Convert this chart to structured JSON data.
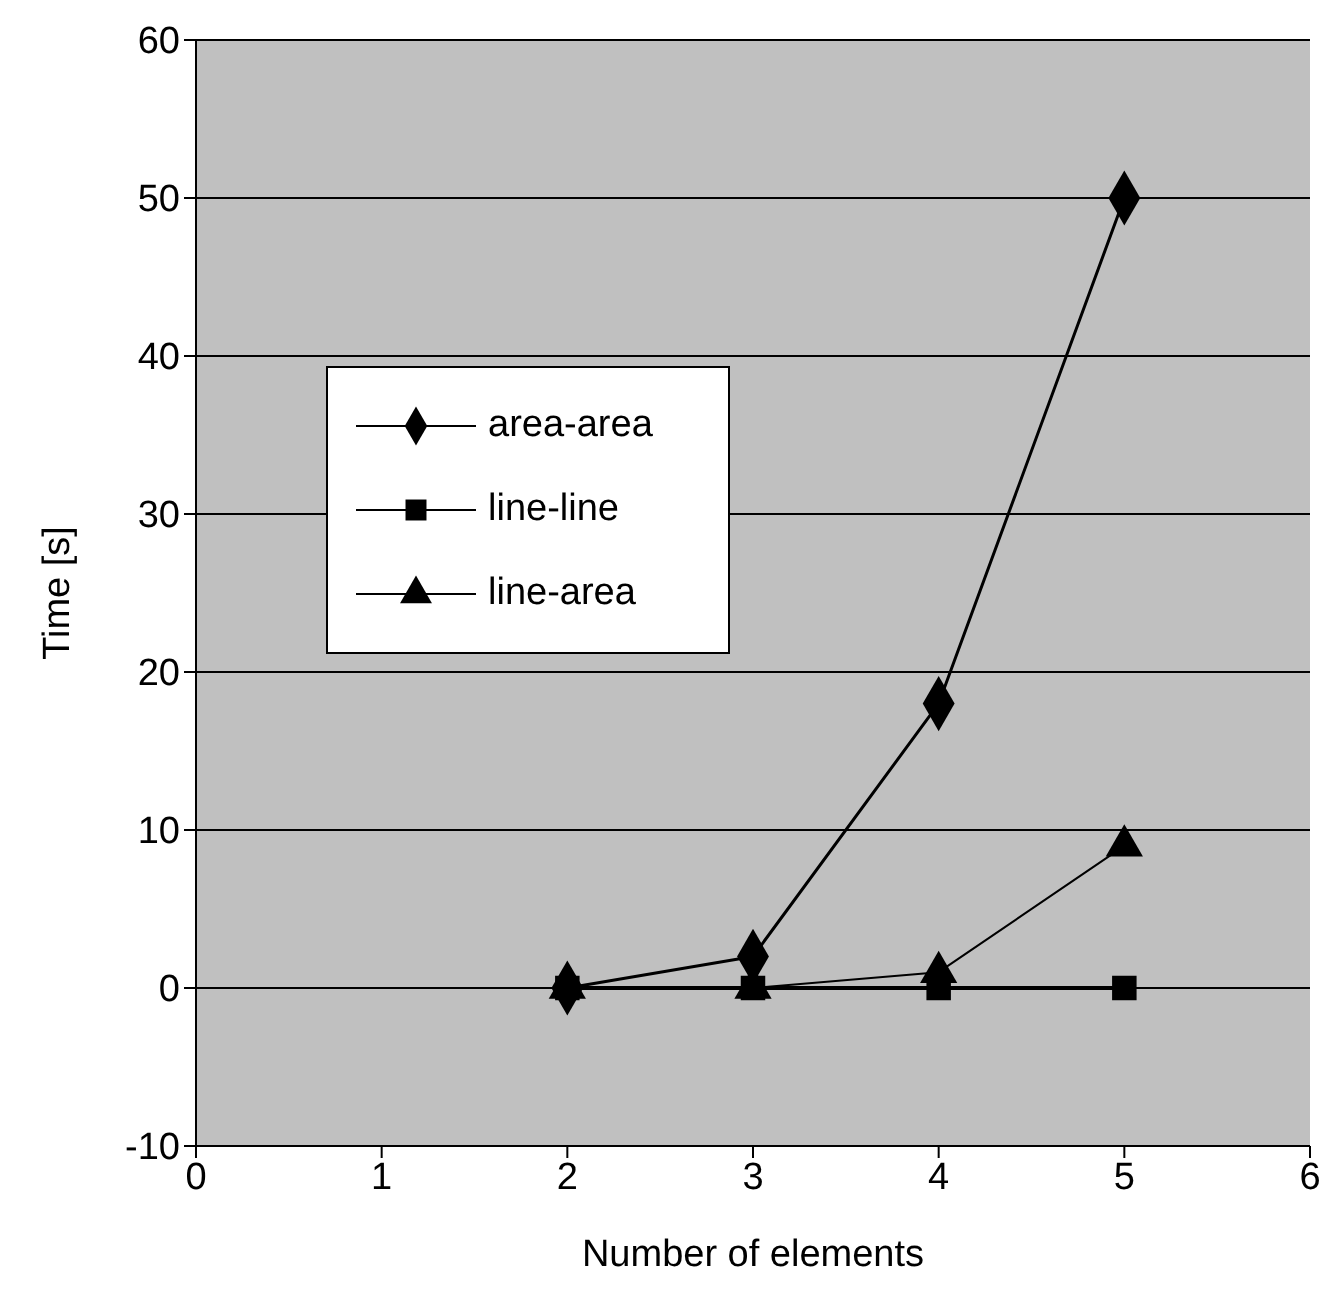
{
  "chart_data": {
    "type": "line",
    "xlabel": "Number of elements",
    "ylabel": "Time [s]",
    "x": [
      2,
      3,
      4,
      5
    ],
    "series": [
      {
        "name": "area-area",
        "color": "#000000",
        "marker": "diamond",
        "values": [
          0,
          2,
          18,
          50
        ]
      },
      {
        "name": "line-line",
        "color": "#000000",
        "marker": "square",
        "values": [
          0,
          0,
          0,
          0
        ]
      },
      {
        "name": "line-area",
        "color": "#000000",
        "marker": "triangle",
        "values": [
          0,
          0,
          1,
          9
        ]
      }
    ],
    "xlim": [
      0,
      6
    ],
    "xticks": [
      0,
      1,
      2,
      3,
      4,
      5,
      6
    ],
    "ylim": [
      -10,
      60
    ],
    "yticks": [
      -10,
      0,
      10,
      20,
      30,
      40,
      50,
      60
    ],
    "grid": "y",
    "legend": "left",
    "line_style": "solid"
  }
}
